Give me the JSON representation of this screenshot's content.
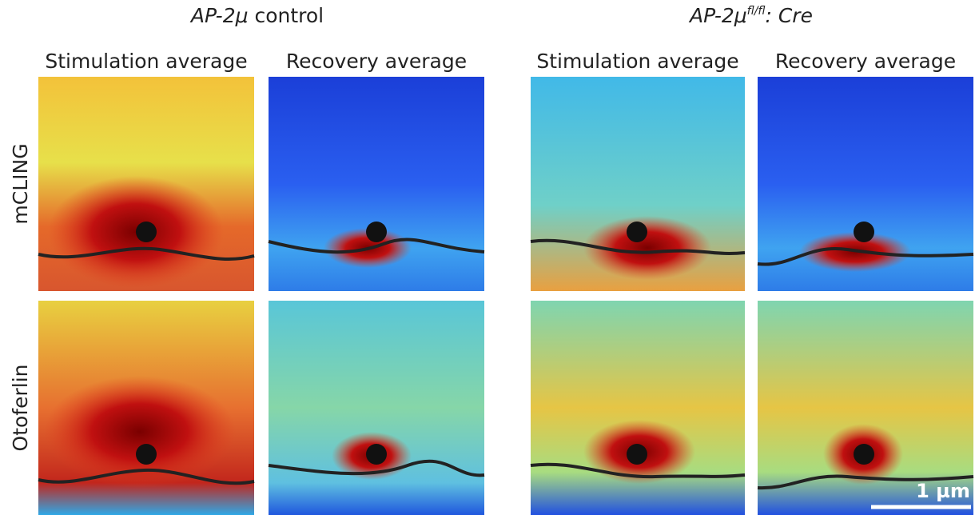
{
  "header": {
    "groups": [
      {
        "parts": [
          "AP-2μ",
          " control"
        ]
      },
      {
        "parts": [
          "AP-2μ",
          "fl/fl",
          ": Cre"
        ]
      }
    ],
    "columns": [
      "Stimulation average",
      "Recovery average",
      "Stimulation average",
      "Recovery average"
    ],
    "rows": [
      "mCLING",
      "Otoferlin"
    ],
    "scale_bar": "1 µm"
  }
}
